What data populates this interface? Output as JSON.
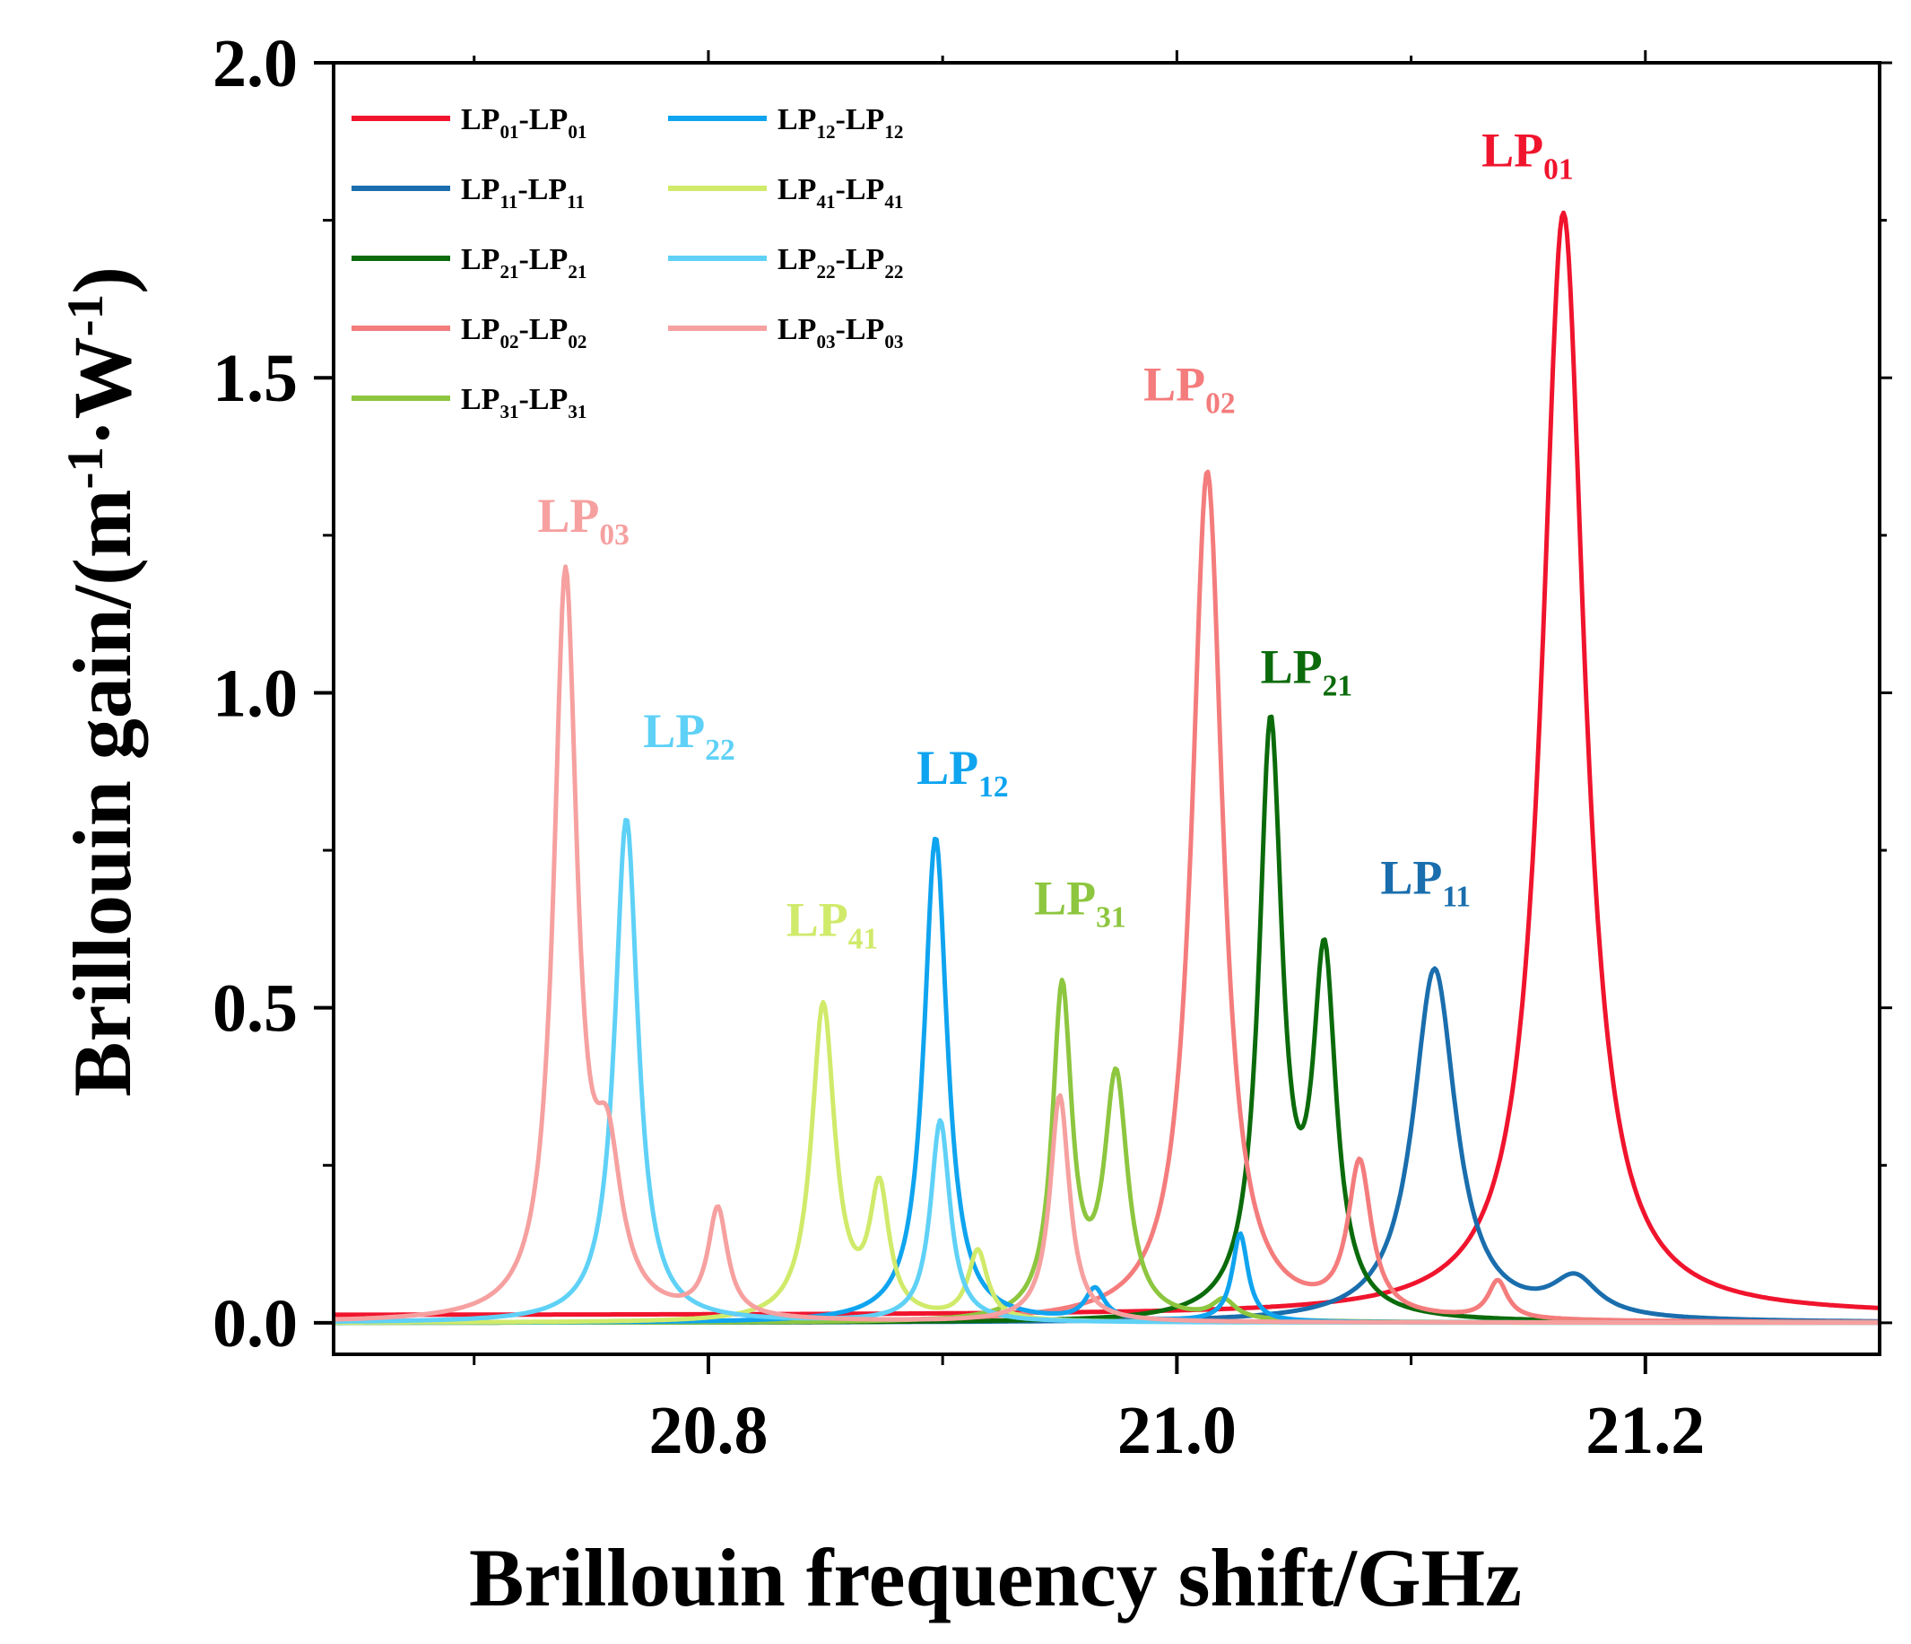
{
  "chart_data": {
    "type": "line",
    "xlabel": "Brillouin frequency shift/GHz",
    "ylabel": {
      "base": "Brillouin gain/(m",
      "exp1": "-1",
      "mid": "·W",
      "exp2": "-1",
      "end": ")"
    },
    "xlim": [
      20.64,
      21.3
    ],
    "ylim": [
      -0.05,
      2.0
    ],
    "xticks": [
      20.8,
      21.0,
      21.2
    ],
    "xtick_labels": [
      "20.8",
      "21.0",
      "21.2"
    ],
    "yticks": [
      0.0,
      0.5,
      1.0,
      1.5,
      2.0
    ],
    "ytick_labels": [
      "0.0",
      "0.5",
      "1.0",
      "1.5",
      "2.0"
    ],
    "series": [
      {
        "key": "LP01",
        "legend": {
          "a": "LP",
          "as": "01",
          "b": "-LP",
          "bs": "01"
        },
        "label": {
          "main": "LP",
          "sub": "01"
        },
        "color": "#f0142d",
        "background": 0.012,
        "peaks": [
          {
            "x": 21.165,
            "y": 1.75,
            "w": 0.011
          }
        ]
      },
      {
        "key": "LP11",
        "legend": {
          "a": "LP",
          "as": "11",
          "b": "-LP",
          "bs": "11"
        },
        "label": {
          "main": "LP",
          "sub": "11"
        },
        "color": "#1a6ead",
        "background": 0.0,
        "peaks": [
          {
            "x": 21.11,
            "y": 0.56,
            "w": 0.011
          },
          {
            "x": 21.17,
            "y": 0.06,
            "w": 0.012
          }
        ]
      },
      {
        "key": "LP21",
        "legend": {
          "a": "LP",
          "as": "21",
          "b": "-LP",
          "bs": "21"
        },
        "label": {
          "main": "LP",
          "sub": "21"
        },
        "color": "#0b6b0b",
        "background": 0.0,
        "peaks": [
          {
            "x": 21.04,
            "y": 0.93,
            "w": 0.006
          },
          {
            "x": 21.063,
            "y": 0.55,
            "w": 0.006
          }
        ]
      },
      {
        "key": "LP02",
        "legend": {
          "a": "LP",
          "as": "02",
          "b": "-LP",
          "bs": "02"
        },
        "label": {
          "main": "LP",
          "sub": "02"
        },
        "color": "#f47c7c",
        "background": 0.0,
        "peaks": [
          {
            "x": 21.013,
            "y": 1.35,
            "w": 0.008
          },
          {
            "x": 21.078,
            "y": 0.24,
            "w": 0.006
          },
          {
            "x": 21.137,
            "y": 0.06,
            "w": 0.005
          }
        ]
      },
      {
        "key": "LP31",
        "legend": {
          "a": "LP",
          "as": "31",
          "b": "-LP",
          "bs": "31"
        },
        "label": {
          "main": "LP",
          "sub": "31"
        },
        "color": "#8dc63f",
        "background": 0.0,
        "peaks": [
          {
            "x": 20.951,
            "y": 0.52,
            "w": 0.005
          },
          {
            "x": 20.974,
            "y": 0.38,
            "w": 0.006
          },
          {
            "x": 21.02,
            "y": 0.03,
            "w": 0.006
          }
        ]
      },
      {
        "key": "LP12",
        "legend": {
          "a": "LP",
          "as": "12",
          "b": "-LP",
          "bs": "12"
        },
        "label": {
          "main": "LP",
          "sub": "12"
        },
        "color": "#0fa4ef",
        "background": 0.0,
        "peaks": [
          {
            "x": 20.897,
            "y": 0.77,
            "w": 0.006
          },
          {
            "x": 20.965,
            "y": 0.05,
            "w": 0.005
          },
          {
            "x": 21.027,
            "y": 0.14,
            "w": 0.004
          }
        ]
      },
      {
        "key": "LP41",
        "legend": {
          "a": "LP",
          "as": "41",
          "b": "-LP",
          "bs": "41"
        },
        "label": {
          "main": "LP",
          "sub": "41"
        },
        "color": "#d0ea6a",
        "background": 0.0,
        "peaks": [
          {
            "x": 20.849,
            "y": 0.5,
            "w": 0.006
          },
          {
            "x": 20.873,
            "y": 0.2,
            "w": 0.005
          },
          {
            "x": 20.915,
            "y": 0.11,
            "w": 0.005
          }
        ]
      },
      {
        "key": "LP22",
        "legend": {
          "a": "LP",
          "as": "22",
          "b": "-LP",
          "bs": "22"
        },
        "label": {
          "main": "LP",
          "sub": "22"
        },
        "color": "#5fd1f7",
        "background": 0.0,
        "peaks": [
          {
            "x": 20.765,
            "y": 0.8,
            "w": 0.006
          },
          {
            "x": 20.899,
            "y": 0.32,
            "w": 0.005
          }
        ]
      },
      {
        "key": "LP03",
        "legend": {
          "a": "LP",
          "as": "03",
          "b": "-LP",
          "bs": "03"
        },
        "label": {
          "main": "LP",
          "sub": "03"
        },
        "color": "#f6a0a0",
        "background": 0.0,
        "peaks": [
          {
            "x": 20.739,
            "y": 1.17,
            "w": 0.006
          },
          {
            "x": 20.757,
            "y": 0.22,
            "w": 0.007
          },
          {
            "x": 20.804,
            "y": 0.17,
            "w": 0.005
          },
          {
            "x": 20.95,
            "y": 0.36,
            "w": 0.005
          }
        ]
      }
    ]
  }
}
